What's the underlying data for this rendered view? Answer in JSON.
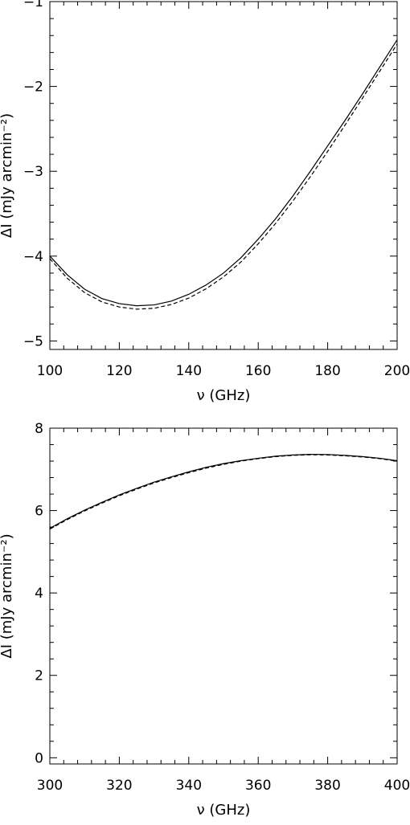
{
  "chart_data": [
    {
      "type": "line",
      "xlabel": "ν (GHz)",
      "ylabel": "ΔI (mJy arcmin⁻²)",
      "xlim": [
        100,
        200
      ],
      "ylim": [
        -5.1,
        -1
      ],
      "xticks": [
        100,
        120,
        140,
        160,
        180,
        200
      ],
      "yticks": [
        -5,
        -4,
        -3,
        -2,
        -1
      ],
      "tick_labels_x": [
        "100",
        "120",
        "140",
        "160",
        "180",
        "200"
      ],
      "tick_labels_y": [
        "−5",
        "−4",
        "−3",
        "−2",
        "−1"
      ],
      "grid": false,
      "legend": "none",
      "series": [
        {
          "style": "solid",
          "x": [
            100,
            105,
            110,
            115,
            120,
            125,
            130,
            135,
            140,
            145,
            150,
            155,
            160,
            165,
            170,
            175,
            180,
            185,
            190,
            195,
            200
          ],
          "y": [
            -4.0,
            -4.22,
            -4.39,
            -4.5,
            -4.56,
            -4.585,
            -4.575,
            -4.53,
            -4.45,
            -4.34,
            -4.2,
            -4.02,
            -3.8,
            -3.56,
            -3.29,
            -3.0,
            -2.7,
            -2.4,
            -2.09,
            -1.77,
            -1.45
          ]
        },
        {
          "style": "dashed",
          "x": [
            100,
            105,
            110,
            115,
            120,
            125,
            130,
            135,
            140,
            145,
            150,
            155,
            160,
            165,
            170,
            175,
            180,
            185,
            190,
            195,
            200
          ],
          "y": [
            -4.03,
            -4.26,
            -4.43,
            -4.54,
            -4.6,
            -4.625,
            -4.615,
            -4.57,
            -4.495,
            -4.385,
            -4.245,
            -4.07,
            -3.855,
            -3.615,
            -3.35,
            -3.065,
            -2.765,
            -2.455,
            -2.14,
            -1.82,
            -1.5
          ]
        }
      ]
    },
    {
      "type": "line",
      "xlabel": "ν (GHz)",
      "ylabel": "ΔI (mJy arcmin⁻²)",
      "xlim": [
        300,
        400
      ],
      "ylim": [
        -0.15,
        8
      ],
      "xticks": [
        300,
        320,
        340,
        360,
        380,
        400
      ],
      "yticks": [
        0,
        2,
        4,
        6,
        8
      ],
      "tick_labels_x": [
        "300",
        "320",
        "340",
        "360",
        "380",
        "400"
      ],
      "tick_labels_y": [
        "0",
        "2",
        "4",
        "6",
        "8"
      ],
      "grid": false,
      "legend": "none",
      "series": [
        {
          "style": "solid",
          "x": [
            300,
            305,
            310,
            315,
            320,
            325,
            330,
            335,
            340,
            345,
            350,
            355,
            360,
            365,
            370,
            375,
            380,
            385,
            390,
            395,
            400
          ],
          "y": [
            5.57,
            5.8,
            6.01,
            6.2,
            6.38,
            6.54,
            6.69,
            6.82,
            6.94,
            7.05,
            7.14,
            7.21,
            7.27,
            7.32,
            7.35,
            7.365,
            7.36,
            7.34,
            7.31,
            7.27,
            7.21
          ]
        },
        {
          "style": "dashed",
          "x": [
            300,
            305,
            310,
            315,
            320,
            325,
            330,
            335,
            340,
            345,
            350,
            355,
            360,
            365,
            370,
            375,
            380,
            385,
            390,
            395,
            400
          ],
          "y": [
            5.55,
            5.78,
            5.99,
            6.18,
            6.36,
            6.52,
            6.67,
            6.8,
            6.92,
            7.03,
            7.12,
            7.2,
            7.26,
            7.31,
            7.34,
            7.355,
            7.35,
            7.33,
            7.3,
            7.26,
            7.2
          ]
        }
      ]
    }
  ]
}
